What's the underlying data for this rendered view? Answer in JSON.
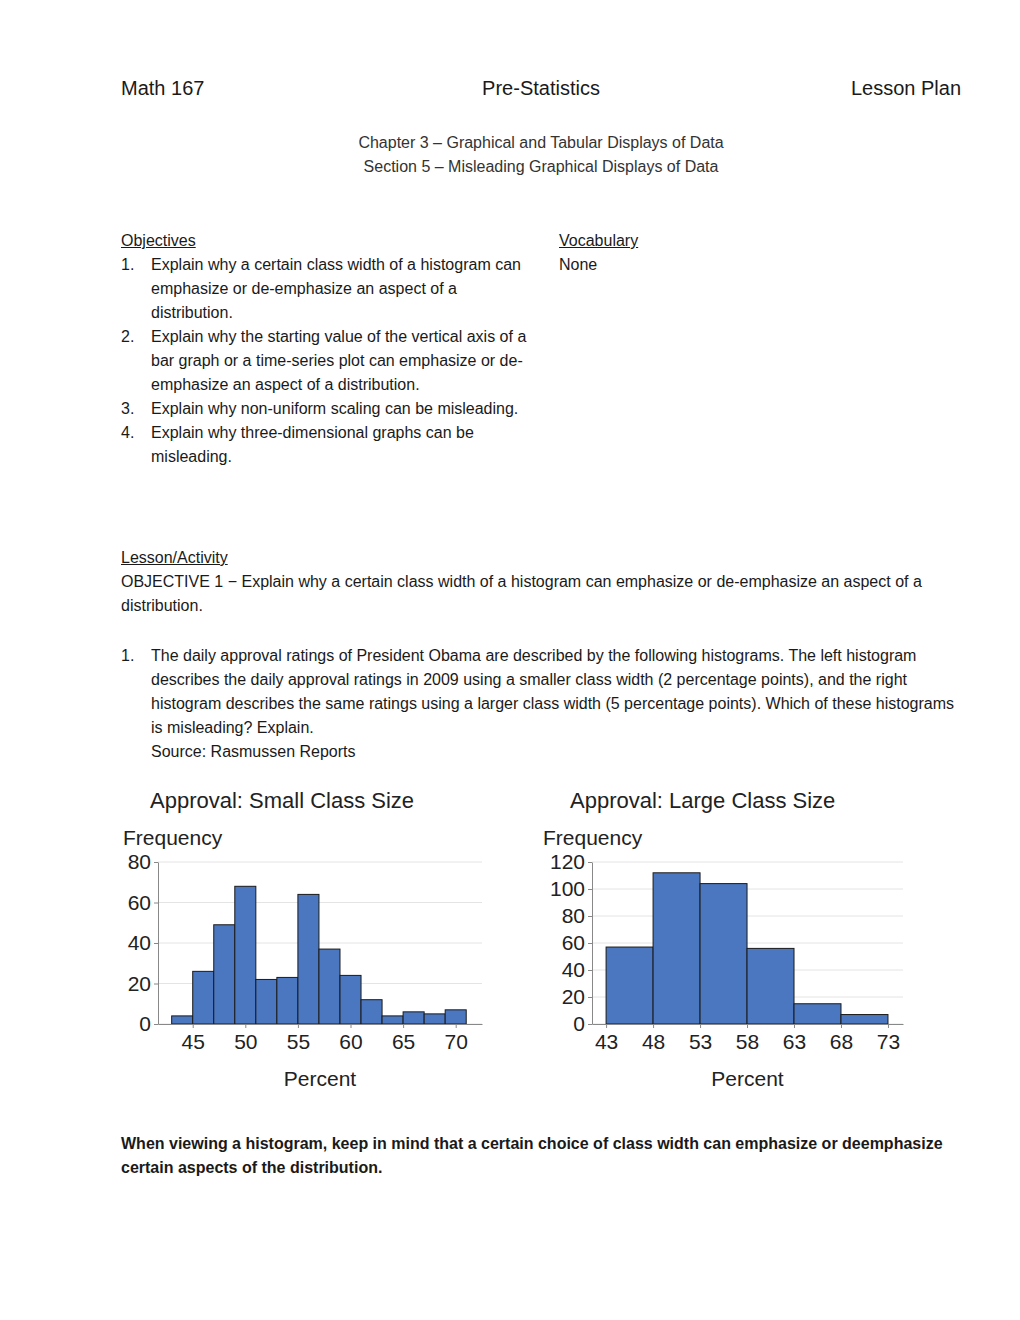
{
  "header": {
    "course": "Math 167",
    "subject": "Pre-Statistics",
    "doc_type": "Lesson Plan"
  },
  "chapter": "Chapter 3 – Graphical and Tabular Displays of Data",
  "section": "Section 5 – Misleading Graphical Displays of Data",
  "objectives": {
    "heading": "Objectives",
    "items": [
      {
        "number": "1.",
        "text": "Explain why a certain class width of a histogram can emphasize or de-emphasize an aspect of a distribution."
      },
      {
        "number": "2.",
        "text": "Explain why the starting value of the vertical axis of a bar graph or a time-series plot can emphasize or de-emphasize an aspect of a distribution."
      },
      {
        "number": "3.",
        "text": "Explain why non-uniform scaling can be misleading."
      },
      {
        "number": "4.",
        "text": "Explain why three-dimensional graphs can be misleading."
      }
    ]
  },
  "vocabulary": {
    "heading": "Vocabulary",
    "items": [
      "None"
    ]
  },
  "lesson": {
    "heading": "Lesson/Activity",
    "objective": "OBJECTIVE 1 − Explain why a certain class width of a histogram can emphasize or de-emphasize an aspect of a distribution.",
    "questions": [
      {
        "number": "1.",
        "text": "The daily approval ratings of President Obama are described by the following histograms. The left histogram describes the daily approval ratings in 2009 using a smaller class width (2 percentage points), and the right histogram describes the same ratings using a larger class width (5 percentage points). Which of these histograms is misleading? Explain.",
        "source": "Source: Rasmussen Reports"
      }
    ]
  },
  "chart_data": [
    {
      "type": "histogram",
      "title": "Approval: Small Class Size",
      "y_label": "Frequency",
      "x_label": "Percent",
      "bins": [
        43,
        45,
        47,
        49,
        51,
        53,
        55,
        57,
        59,
        61,
        63,
        65,
        67,
        69,
        71
      ],
      "values": [
        4,
        26,
        49,
        68,
        22,
        23,
        64,
        37,
        24,
        12,
        4,
        6,
        5,
        7
      ],
      "color": "#4a77c0",
      "xlim": [
        41.7,
        72.5
      ],
      "xticks": [
        45,
        50,
        55,
        60,
        65,
        70
      ],
      "ylim": [
        0,
        80
      ],
      "yticks": [
        0,
        20,
        40,
        60,
        80
      ],
      "grid": true
    },
    {
      "type": "histogram",
      "title": "Approval: Large Class Size",
      "y_label": "Frequency",
      "x_label": "Percent",
      "bins": [
        43,
        48,
        53,
        58,
        63,
        68,
        73
      ],
      "values": [
        57,
        112,
        104,
        56,
        15,
        7
      ],
      "color": "#4a77c0",
      "xlim": [
        41.5,
        74.6
      ],
      "xticks": [
        43,
        48,
        53,
        58,
        63,
        68,
        73
      ],
      "ylim": [
        0,
        120
      ],
      "yticks": [
        0,
        20,
        40,
        60,
        80,
        100,
        120
      ],
      "grid": true
    }
  ],
  "note": "When viewing a histogram, keep in mind that a certain choice of class width can emphasize or deemphasize certain aspects of the distribution."
}
